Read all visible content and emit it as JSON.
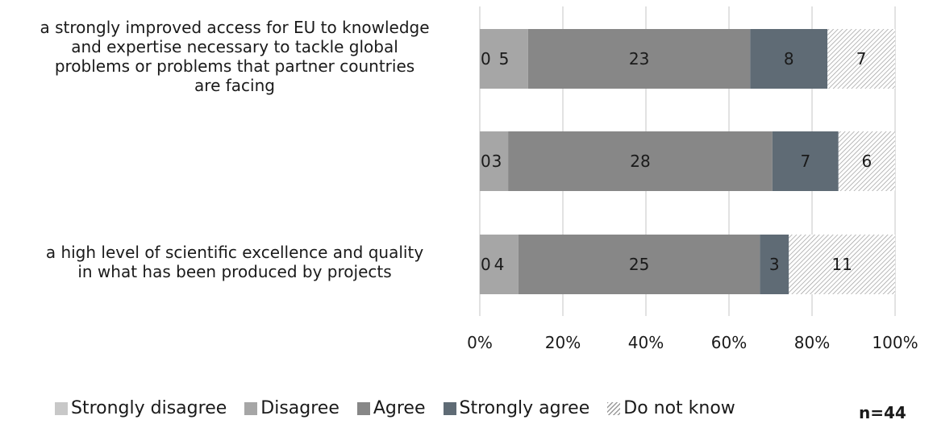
{
  "chart_data": {
    "type": "bar",
    "orientation": "horizontal",
    "stacked": "percent",
    "categories": [
      "a strongly improved access for EU to knowledge and expertise necessary to tackle global problems or problems that partner countries are facing",
      "",
      "a high level of scientific excellence and quality in what has been produced by projects"
    ],
    "category_lines": [
      [
        "a strongly improved access for EU to knowledge",
        "and expertise necessary to tackle global",
        "problems or problems that partner countries",
        "are facing"
      ],
      [],
      [
        "a high level of scientific excellence and quality",
        "in what has been produced by projects"
      ]
    ],
    "series": [
      {
        "name": "Strongly disagree",
        "values": [
          0,
          0,
          0
        ],
        "color": "#c8c8c8"
      },
      {
        "name": "Disagree",
        "values": [
          5,
          3,
          4
        ],
        "color": "#a6a6a6"
      },
      {
        "name": "Agree",
        "values": [
          23,
          28,
          25
        ],
        "color": "#878787"
      },
      {
        "name": "Strongly agree",
        "values": [
          8,
          7,
          3
        ],
        "color": "#5f6b75"
      },
      {
        "name": "Do not know",
        "values": [
          7,
          6,
          11
        ],
        "color": "hatch"
      }
    ],
    "xticks": [
      "0%",
      "20%",
      "40%",
      "60%",
      "80%",
      "100%"
    ],
    "xlim": [
      0,
      100
    ],
    "grid": true,
    "legend_position": "bottom",
    "note": "n=44"
  }
}
